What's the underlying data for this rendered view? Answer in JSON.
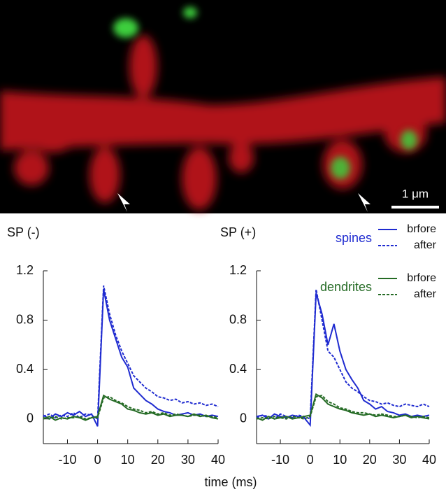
{
  "image": {
    "scale_bar": "1 μm"
  },
  "xlabel": "time (ms)",
  "legend": {
    "groups": [
      {
        "name": "spines",
        "color": "#1f2bd0",
        "entries": [
          {
            "name": "brfore",
            "dash": false
          },
          {
            "name": "after",
            "dash": true
          }
        ]
      },
      {
        "name": "dendrites",
        "color": "#256b25",
        "entries": [
          {
            "name": "brfore",
            "dash": false
          },
          {
            "name": "after",
            "dash": true
          }
        ]
      }
    ]
  },
  "chart_data": [
    {
      "type": "line",
      "title": "SP (-)",
      "x": [
        -18,
        -16,
        -14,
        -12,
        -10,
        -8,
        -6,
        -4,
        -2,
        0,
        2,
        4,
        6,
        8,
        10,
        12,
        14,
        16,
        18,
        20,
        22,
        24,
        26,
        28,
        30,
        32,
        34,
        36,
        38,
        40
      ],
      "xlim": [
        -18,
        40
      ],
      "xticks": [
        -10,
        0,
        10,
        20,
        30,
        40
      ],
      "ylim": [
        -0.2,
        1.2
      ],
      "yticks": [
        0,
        0.4,
        0.8,
        1.2
      ],
      "series": [
        {
          "values": [
            0.03,
            0.0,
            0.04,
            0.02,
            0.05,
            0.03,
            0.06,
            0.02,
            0.04,
            -0.06,
            1.05,
            0.8,
            0.65,
            0.5,
            0.42,
            0.25,
            0.2,
            0.15,
            0.12,
            0.08,
            0.06,
            0.05,
            0.03,
            0.04,
            0.05,
            0.03,
            0.04,
            0.02,
            0.03,
            0.02
          ]
        },
        {
          "values": [
            0.02,
            0.04,
            0.01,
            0.03,
            0.02,
            0.05,
            0.01,
            0.04,
            0.03,
            0.0,
            1.08,
            0.85,
            0.68,
            0.55,
            0.45,
            0.35,
            0.3,
            0.25,
            0.22,
            0.18,
            0.17,
            0.15,
            0.16,
            0.13,
            0.14,
            0.12,
            0.13,
            0.11,
            0.12,
            0.1
          ]
        },
        {
          "values": [
            0.0,
            0.02,
            -0.01,
            0.01,
            0.0,
            0.02,
            0.01,
            -0.01,
            0.01,
            0.02,
            0.19,
            0.16,
            0.14,
            0.12,
            0.08,
            0.07,
            0.05,
            0.04,
            0.05,
            0.03,
            0.04,
            0.02,
            0.03,
            0.03,
            0.02,
            0.04,
            0.02,
            0.03,
            0.01,
            0.0
          ]
        },
        {
          "values": [
            0.01,
            0.0,
            0.02,
            0.0,
            0.01,
            0.01,
            0.02,
            0.0,
            0.01,
            0.01,
            0.17,
            0.18,
            0.15,
            0.13,
            0.1,
            0.08,
            0.07,
            0.05,
            0.06,
            0.04,
            0.05,
            0.03,
            0.04,
            0.03,
            0.02,
            0.03,
            0.03,
            0.02,
            0.02,
            0.01
          ]
        }
      ]
    },
    {
      "type": "line",
      "title": "SP (+)",
      "x": [
        -18,
        -16,
        -14,
        -12,
        -10,
        -8,
        -6,
        -4,
        -2,
        0,
        2,
        4,
        6,
        8,
        10,
        12,
        14,
        16,
        18,
        20,
        22,
        24,
        26,
        28,
        30,
        32,
        34,
        36,
        38,
        40
      ],
      "xlim": [
        -18,
        40
      ],
      "xticks": [
        -10,
        0,
        10,
        20,
        30,
        40
      ],
      "ylim": [
        -0.2,
        1.2
      ],
      "yticks": [
        0,
        0.4,
        0.8,
        1.2
      ],
      "series": [
        {
          "values": [
            0.02,
            0.03,
            0.0,
            0.04,
            0.02,
            0.01,
            0.03,
            0.02,
            0.01,
            -0.05,
            1.02,
            0.85,
            0.6,
            0.77,
            0.55,
            0.4,
            0.32,
            0.25,
            0.15,
            0.12,
            0.08,
            0.1,
            0.06,
            0.05,
            0.03,
            0.04,
            0.02,
            0.03,
            0.02,
            0.03
          ]
        },
        {
          "values": [
            0.01,
            0.03,
            0.02,
            0.0,
            0.04,
            0.02,
            0.01,
            0.03,
            0.02,
            0.0,
            1.05,
            0.8,
            0.55,
            0.5,
            0.4,
            0.3,
            0.25,
            0.22,
            0.18,
            0.15,
            0.14,
            0.12,
            0.13,
            0.11,
            0.1,
            0.12,
            0.11,
            0.1,
            0.12,
            0.1
          ]
        },
        {
          "values": [
            0.01,
            -0.01,
            0.02,
            0.0,
            0.01,
            0.02,
            0.0,
            0.01,
            0.02,
            0.03,
            0.2,
            0.17,
            0.12,
            0.1,
            0.08,
            0.07,
            0.05,
            0.04,
            0.03,
            0.04,
            0.02,
            0.03,
            0.02,
            0.01,
            0.02,
            0.03,
            0.01,
            0.02,
            0.01,
            0.0
          ]
        },
        {
          "values": [
            0.0,
            0.01,
            0.0,
            0.02,
            0.01,
            0.0,
            0.02,
            0.01,
            0.0,
            0.02,
            0.18,
            0.19,
            0.14,
            0.12,
            0.09,
            0.08,
            0.06,
            0.05,
            0.05,
            0.04,
            0.03,
            0.04,
            0.03,
            0.02,
            0.02,
            0.03,
            0.02,
            0.01,
            0.02,
            0.01
          ]
        }
      ]
    }
  ]
}
